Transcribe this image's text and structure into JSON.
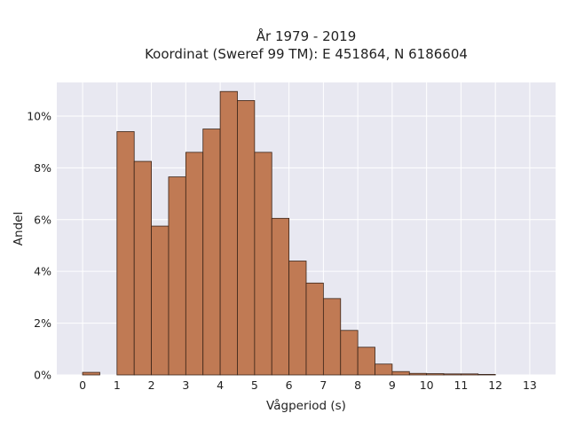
{
  "chart_data": {
    "type": "bar",
    "title_line1": "År 1979 - 2019",
    "title_line2": "Koordinat (Sweref 99 TM): E 451864, N 6186604",
    "xlabel": "Vågperiod (s)",
    "ylabel": "Andel",
    "xlim": [
      -0.75,
      13.75
    ],
    "ylim": [
      0,
      11.3
    ],
    "x_ticks": [
      0,
      1,
      2,
      3,
      4,
      5,
      6,
      7,
      8,
      9,
      10,
      11,
      12,
      13
    ],
    "x_tick_labels": [
      "0",
      "1",
      "2",
      "3",
      "4",
      "5",
      "6",
      "7",
      "8",
      "9",
      "10",
      "11",
      "12",
      "13"
    ],
    "y_ticks": [
      0,
      2,
      4,
      6,
      8,
      10
    ],
    "y_tick_labels": [
      "0%",
      "2%",
      "4%",
      "6%",
      "8%",
      "10%"
    ],
    "bin_width": 0.5,
    "bin_starts": [
      0,
      1,
      1.5,
      2,
      2.5,
      3,
      3.5,
      4,
      4.5,
      5,
      5.5,
      6,
      6.5,
      7,
      7.5,
      8,
      8.5,
      9,
      9.5,
      10,
      10.5,
      11,
      11.5
    ],
    "values": [
      0.1,
      9.4,
      8.25,
      5.75,
      7.65,
      8.6,
      9.5,
      10.95,
      10.6,
      8.6,
      6.05,
      4.4,
      3.55,
      2.95,
      1.72,
      1.07,
      0.42,
      0.13,
      0.06,
      0.05,
      0.04,
      0.04,
      0.02
    ],
    "grid": true,
    "colors": {
      "bar_fill": "#c07a54",
      "bar_edge": "#3a2418",
      "plot_bg": "#e8e8f1",
      "grid": "#ffffff"
    }
  }
}
